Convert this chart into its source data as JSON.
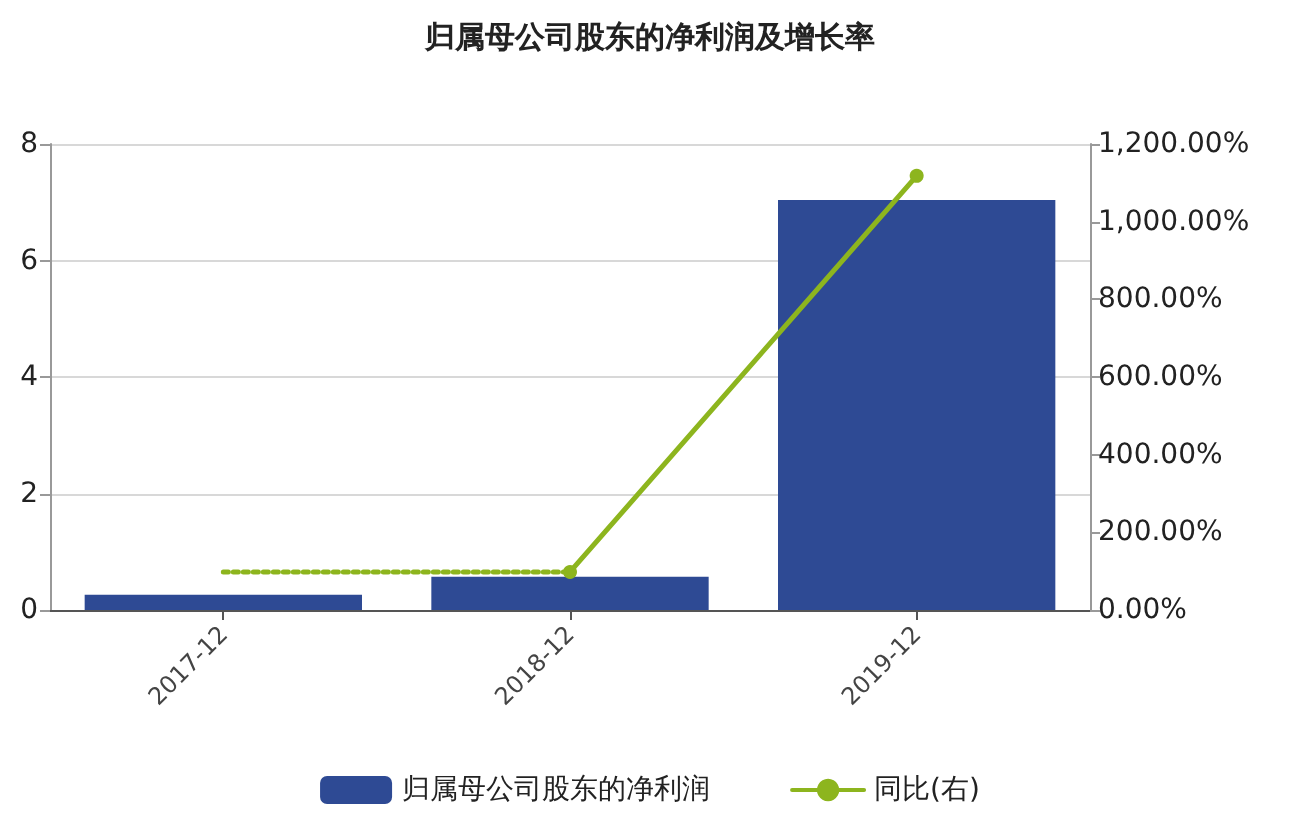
{
  "chart_data": {
    "type": "bar",
    "title": "归属母公司股东的净利润及增长率",
    "categories": [
      "2017-12",
      "2018-12",
      "2019-12"
    ],
    "series": [
      {
        "name": "归属母公司股东的净利润",
        "color": "#2e4a94",
        "values": [
          0.26,
          0.57,
          7.04
        ]
      },
      {
        "name": "同比(右)",
        "type": "line",
        "axis": "y2",
        "color": "#8db51e",
        "marker": "circle",
        "line_style": "solid",
        "values": [
          null,
          98,
          1118
        ]
      },
      {
        "type": "line",
        "axis": "y2",
        "color": "#8db51e",
        "marker": "none",
        "line_style": "dotted",
        "values": [
          98,
          98,
          null
        ]
      }
    ],
    "ylim": [
      0,
      8
    ],
    "yticks": [
      0,
      2,
      4,
      6,
      8
    ],
    "y2lim": [
      0,
      1200
    ],
    "y2ticks": [
      {
        "value": 0,
        "label": "0.00%"
      },
      {
        "value": 200,
        "label": "200.00%"
      },
      {
        "value": 400,
        "label": "400.00%"
      },
      {
        "value": 600,
        "label": "600.00%"
      },
      {
        "value": 800,
        "label": "800.00%"
      },
      {
        "value": 1000,
        "label": "1,000.00%"
      },
      {
        "value": 1200,
        "label": "1,200.00%"
      }
    ],
    "grid": "y",
    "legend": "bottom"
  }
}
